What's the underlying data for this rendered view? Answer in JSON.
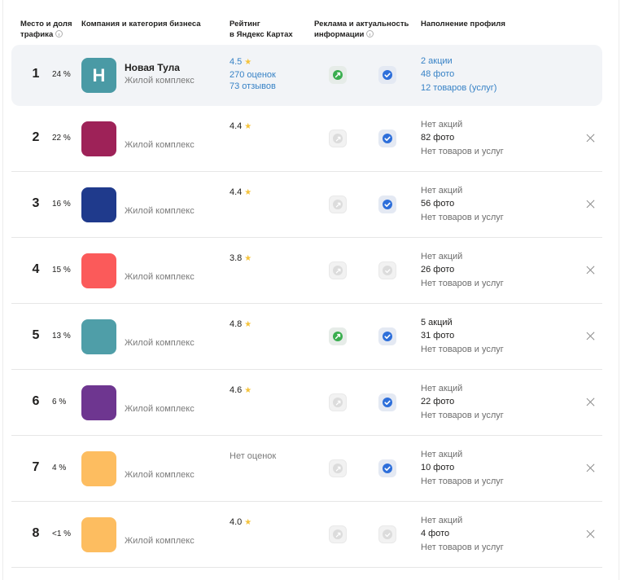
{
  "header": {
    "col_place": [
      "Место и доля",
      "трафика"
    ],
    "col_company": "Компания и категория бизнеса",
    "col_rating": [
      "Рейтинг",
      "в Яндекс Картах"
    ],
    "col_ads": [
      "Реклама и актуальность",
      "информации"
    ],
    "col_profile": "Наполнение профиля"
  },
  "rows": [
    {
      "rank": "1",
      "share": "24 %",
      "logo_letter": "Н",
      "logo_color": "#4a9aa5",
      "name": "Новая Тула",
      "category": "Жилой комплекс",
      "rating_lines": [
        "4.5",
        "270 оценок",
        "73 отзывов"
      ],
      "rating_style": "blue",
      "ad_active": true,
      "info_actual": true,
      "profile": [
        "2 акции",
        "48 фото",
        "12 товаров (услуг)"
      ],
      "profile_style": "blue",
      "closable": false
    },
    {
      "rank": "2",
      "share": "22 %",
      "logo_letter": "",
      "logo_color": "#9e2258",
      "name": "",
      "category": "Жилой комплекс",
      "rating_lines": [
        "4.4"
      ],
      "rating_style": "plain",
      "ad_active": false,
      "info_actual": true,
      "profile": [
        "Нет акций",
        "82 фото",
        "Нет товаров и услуг"
      ],
      "profile_style": "plain",
      "closable": true
    },
    {
      "rank": "3",
      "share": "16 %",
      "logo_letter": "",
      "logo_color": "#1f3a8c",
      "name": "",
      "category": "Жилой комплекс",
      "rating_lines": [
        "4.4"
      ],
      "rating_style": "plain",
      "ad_active": false,
      "info_actual": true,
      "profile": [
        "Нет акций",
        "56 фото",
        "Нет товаров и услуг"
      ],
      "profile_style": "plain",
      "closable": true
    },
    {
      "rank": "4",
      "share": "15 %",
      "logo_letter": "",
      "logo_color": "#fb5a5a",
      "name": "",
      "category": "Жилой комплекс",
      "rating_lines": [
        "3.8"
      ],
      "rating_style": "plain",
      "ad_active": false,
      "info_actual": false,
      "profile": [
        "Нет акций",
        "26 фото",
        "Нет товаров и услуг"
      ],
      "profile_style": "plain",
      "closable": true
    },
    {
      "rank": "5",
      "share": "13 %",
      "logo_letter": "",
      "logo_color": "#4f9ea8",
      "name": "",
      "category": "Жилой комплекс",
      "rating_lines": [
        "4.8"
      ],
      "rating_style": "plain",
      "ad_active": true,
      "info_actual": true,
      "profile": [
        "5 акций",
        "31 фото",
        "Нет товаров и услуг"
      ],
      "profile_style": "plain",
      "closable": true
    },
    {
      "rank": "6",
      "share": "6 %",
      "logo_letter": "",
      "logo_color": "#6e3690",
      "name": "",
      "category": "Жилой комплекс",
      "rating_lines": [
        "4.6"
      ],
      "rating_style": "plain",
      "ad_active": false,
      "info_actual": true,
      "profile": [
        "Нет акций",
        "22 фото",
        "Нет товаров и услуг"
      ],
      "profile_style": "plain",
      "closable": true
    },
    {
      "rank": "7",
      "share": "4 %",
      "logo_letter": "",
      "logo_color": "#fdbd60",
      "name": "",
      "category": "Жилой комплекс",
      "rating_lines": [
        "Нет оценок"
      ],
      "rating_style": "muted",
      "ad_active": false,
      "info_actual": true,
      "profile": [
        "Нет акций",
        "10 фото",
        "Нет товаров и услуг"
      ],
      "profile_style": "plain",
      "closable": true
    },
    {
      "rank": "8",
      "share": "<1 %",
      "logo_letter": "",
      "logo_color": "#fdbd60",
      "name": "",
      "category": "Жилой комплекс",
      "rating_lines": [
        "4.0"
      ],
      "rating_style": "plain",
      "ad_active": false,
      "info_actual": false,
      "profile": [
        "Нет акций",
        "4 фото",
        "Нет товаров и услуг"
      ],
      "profile_style": "plain",
      "closable": true
    }
  ]
}
